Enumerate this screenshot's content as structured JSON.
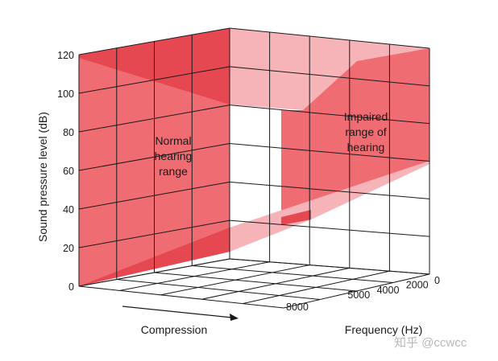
{
  "chart_data": {
    "type": "area",
    "title": "",
    "ylabel": "Sound pressure level (dB)",
    "zlabel": "Frequency (Hz)",
    "xlabel": "Compression",
    "y_ticks": [
      "0",
      "20",
      "40",
      "60",
      "80",
      "100",
      "120"
    ],
    "ylim": [
      0,
      120
    ],
    "z_ticks": [
      "0",
      "2000",
      "4000",
      "5000",
      "8000"
    ],
    "grid": true,
    "annotations": [
      {
        "name": "normal-hearing-range-label",
        "lines": [
          "Normal",
          "hearing",
          "range"
        ]
      },
      {
        "name": "impaired-hearing-range-label",
        "lines": [
          "Impaired",
          "range of",
          "hearing"
        ]
      }
    ],
    "series": [
      {
        "name": "Normal hearing range",
        "color": "#ee6c72",
        "lower_db": 0,
        "upper_db": 120
      },
      {
        "name": "Impaired range of hearing",
        "color": "#ee6c72"
      }
    ]
  },
  "watermark": "知乎 @ccwcc",
  "colors": {
    "fill_main": "#ee6c72",
    "fill_dark": "#e64852",
    "fill_light": "#f6b3b8",
    "grid": "#1a1a1a"
  }
}
